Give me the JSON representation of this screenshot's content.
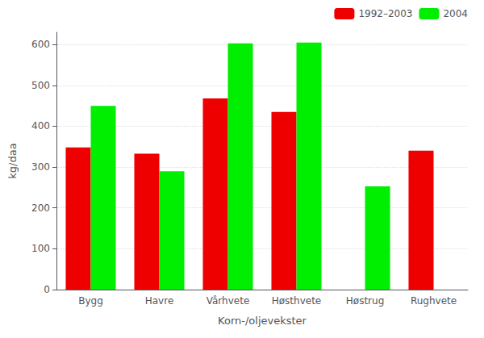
{
  "chart_data": {
    "type": "bar",
    "categories": [
      "Bygg",
      "Havre",
      "Vårhvete",
      "Høsthvete",
      "Høstrug",
      "Rughvete"
    ],
    "series": [
      {
        "name": "1992–2003",
        "color": "#ee0000",
        "values": [
          348,
          333,
          468,
          435,
          0,
          340
        ]
      },
      {
        "name": "2004",
        "color": "#00ee00",
        "values": [
          450,
          290,
          603,
          605,
          253,
          0
        ]
      }
    ],
    "xlabel": "Korn-/oljevekster",
    "ylabel": "kg/daa",
    "ylim": [
      0,
      630
    ],
    "yticks": [
      0,
      100,
      200,
      300,
      400,
      500,
      600
    ],
    "grid": true,
    "legend": "upper right"
  }
}
